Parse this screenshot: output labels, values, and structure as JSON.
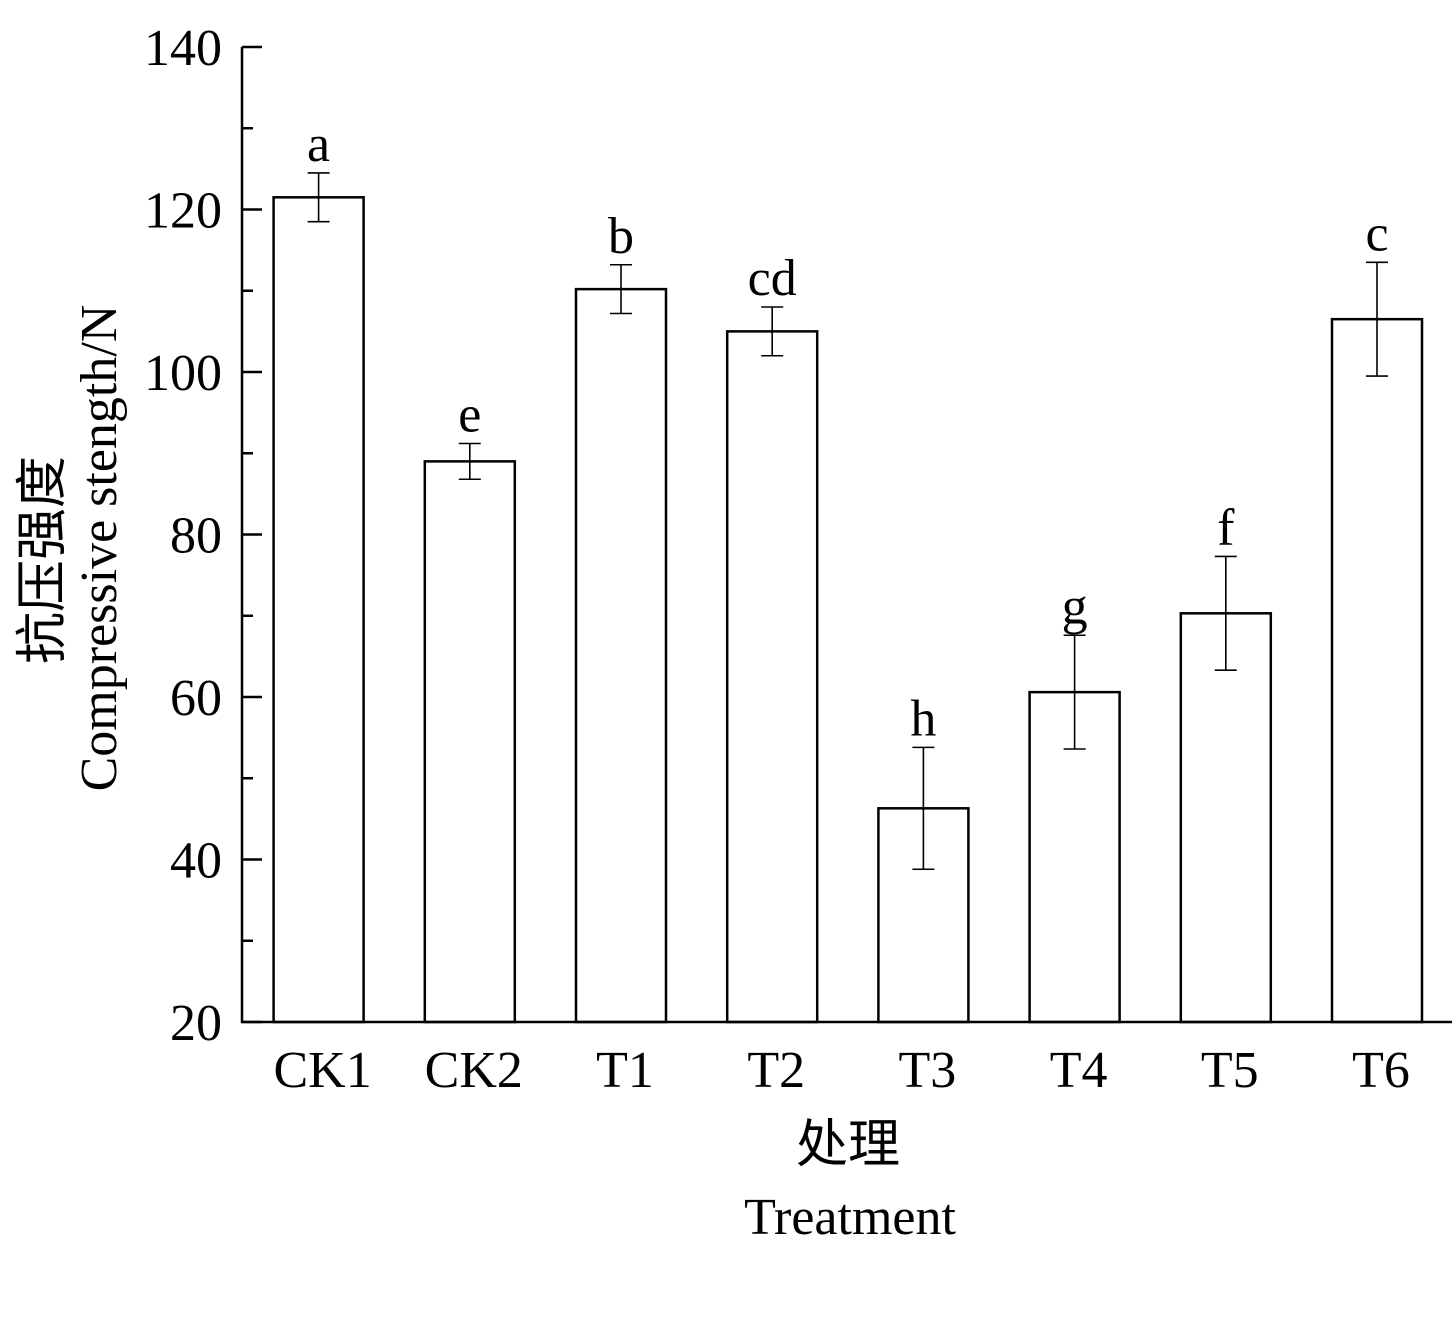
{
  "chart_data": {
    "type": "bar",
    "categories": [
      "CK1",
      "CK2",
      "T1",
      "T2",
      "T3",
      "T4",
      "T5",
      "T6"
    ],
    "values": [
      121.5,
      89,
      110.2,
      105,
      46.3,
      60.6,
      70.3,
      106.5
    ],
    "errors": [
      3,
      2.2,
      3,
      3,
      7.5,
      7,
      7,
      7
    ],
    "significance": [
      "a",
      "e",
      "b",
      "cd",
      "h",
      "g",
      "f",
      "c"
    ],
    "xlabel_cn": "处理",
    "xlabel": "Treatment",
    "ylabel_cn": "抗压强度",
    "ylabel": "Compressive stength/N",
    "ylim": [
      20,
      140
    ],
    "yticks": [
      20,
      40,
      60,
      80,
      100,
      120,
      140
    ],
    "grid": false,
    "colors": {
      "bar_fill": "#ffffff",
      "stroke": "#000000"
    }
  }
}
